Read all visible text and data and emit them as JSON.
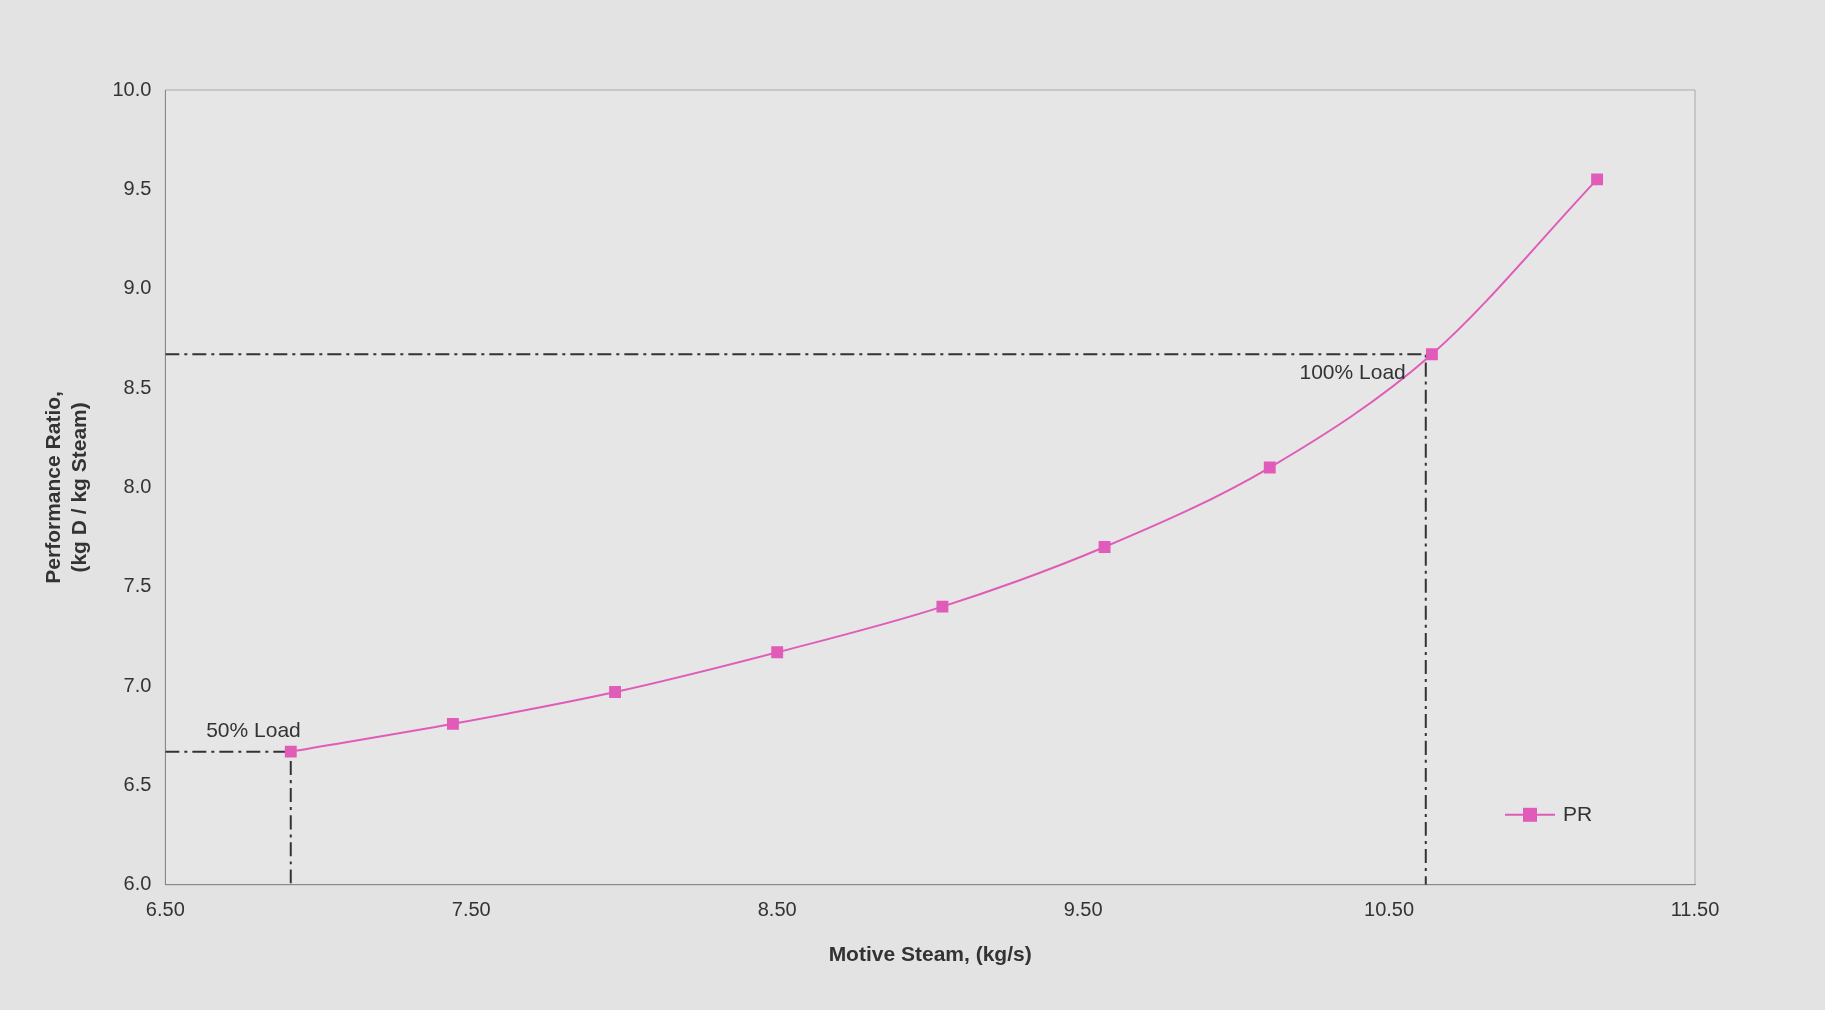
{
  "chart_data": {
    "type": "line",
    "xlabel": "Motive Steam, (kg/s)",
    "ylabel": "Performance Ratio,\n(kg D / kg Steam)",
    "xlim": [
      6.5,
      11.5
    ],
    "xticks": [
      {
        "value": 6.5,
        "label": "6.50"
      },
      {
        "value": 7.5,
        "label": "7.50"
      },
      {
        "value": 8.5,
        "label": "8.50"
      },
      {
        "value": 9.5,
        "label": "9.50"
      },
      {
        "value": 10.5,
        "label": "10.50"
      },
      {
        "value": 11.5,
        "label": "11.50"
      }
    ],
    "ylim": [
      6,
      10
    ],
    "yticks": [
      {
        "value": 6,
        "label": "6.0"
      },
      {
        "value": 6.5,
        "label": "6.5"
      },
      {
        "value": 7,
        "label": "7.0"
      },
      {
        "value": 7.5,
        "label": "7.5"
      },
      {
        "value": 8,
        "label": "8.0"
      },
      {
        "value": 8.5,
        "label": "8.5"
      },
      {
        "value": 9,
        "label": "9.0"
      },
      {
        "value": 9.5,
        "label": "9.5"
      },
      {
        "value": 10,
        "label": "10.0"
      }
    ],
    "grid": false,
    "legend": "bottom right",
    "series": [
      {
        "name": "PR",
        "color": "#e05cb8",
        "marker": "square",
        "line_style": "solid",
        "x": [
          6.91,
          7.44,
          7.97,
          8.5,
          9.04,
          9.57,
          10.11,
          10.64,
          11.18
        ],
        "values": [
          6.67,
          6.81,
          6.97,
          7.17,
          7.4,
          7.7,
          8.1,
          8.67,
          9.55
        ]
      },
      {
        "color": "#333333",
        "marker": "none",
        "line_style": "dashed",
        "x": [
          6.5,
          6.91,
          6.91
        ],
        "values": [
          6.67,
          6.67,
          6
        ]
      },
      {
        "color": "#333333",
        "marker": "none",
        "line_style": "dashed",
        "x": [
          6.5,
          10.62,
          10.62
        ],
        "values": [
          8.67,
          8.67,
          6
        ]
      }
    ],
    "annotations": [
      {
        "text": "50% Load",
        "x": 6.91,
        "y": 6.67
      },
      {
        "text": "100% Load",
        "x": 10.62,
        "y": 8.67
      }
    ]
  }
}
